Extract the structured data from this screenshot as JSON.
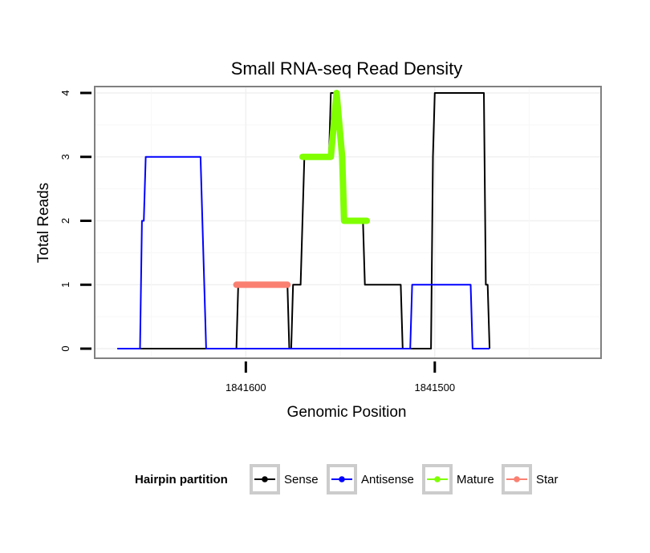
{
  "chart_data": {
    "type": "line",
    "title": "Small RNA-seq Read Density",
    "xlabel": "Genomic Position",
    "ylabel": "Total Reads",
    "x_reversed": true,
    "xlim": [
      1841680,
      1841412
    ],
    "ylim": [
      -0.15,
      4.1
    ],
    "x_ticks": [
      1841600,
      1841500
    ],
    "x_tick_labels": [
      "1841600",
      "1841500"
    ],
    "y_ticks": [
      0,
      1,
      2,
      3,
      4
    ],
    "y_tick_labels": [
      "0",
      "1",
      "2",
      "3",
      "4"
    ],
    "grid": true,
    "legend": {
      "title": "Hairpin partition",
      "position": "bottom",
      "entries": [
        {
          "label": "Sense",
          "color": "#000000"
        },
        {
          "label": "Antisense",
          "color": "#0000ff"
        },
        {
          "label": "Mature",
          "color": "#7fff00"
        },
        {
          "label": "Star",
          "color": "#fa8072"
        }
      ]
    },
    "series": [
      {
        "name": "Sense",
        "color": "#000000",
        "points": [
          [
            1841668,
            0
          ],
          [
            1841605,
            0
          ],
          [
            1841604,
            1
          ],
          [
            1841578,
            1
          ],
          [
            1841577,
            0
          ],
          [
            1841576,
            0
          ],
          [
            1841575,
            1
          ],
          [
            1841571,
            1
          ],
          [
            1841569,
            3
          ],
          [
            1841556,
            3
          ],
          [
            1841555,
            4
          ],
          [
            1841552,
            4
          ],
          [
            1841550,
            3
          ],
          [
            1841549,
            2
          ],
          [
            1841538,
            2
          ],
          [
            1841537,
            1
          ],
          [
            1841518,
            1
          ],
          [
            1841517,
            0
          ],
          [
            1841502,
            0
          ],
          [
            1841501,
            3
          ],
          [
            1841500,
            4
          ],
          [
            1841474,
            4
          ],
          [
            1841473,
            1
          ],
          [
            1841472,
            1
          ],
          [
            1841471,
            0
          ]
        ]
      },
      {
        "name": "Antisense",
        "color": "#0000ff",
        "points": [
          [
            1841668,
            0
          ],
          [
            1841656,
            0
          ],
          [
            1841655,
            2
          ],
          [
            1841654,
            2
          ],
          [
            1841653,
            3
          ],
          [
            1841624,
            3
          ],
          [
            1841623,
            2
          ],
          [
            1841621,
            0
          ],
          [
            1841513,
            0
          ],
          [
            1841512,
            1
          ],
          [
            1841481,
            1
          ],
          [
            1841480,
            0
          ],
          [
            1841471,
            0
          ]
        ]
      },
      {
        "name": "Mature",
        "color": "#7fff00",
        "points": [
          [
            1841570,
            3
          ],
          [
            1841555,
            3
          ],
          [
            1841552,
            4
          ],
          [
            1841549,
            3
          ],
          [
            1841548,
            2
          ],
          [
            1841536,
            2
          ]
        ]
      },
      {
        "name": "Star",
        "color": "#fa8072",
        "points": [
          [
            1841605,
            1
          ],
          [
            1841578,
            1
          ]
        ]
      }
    ]
  }
}
